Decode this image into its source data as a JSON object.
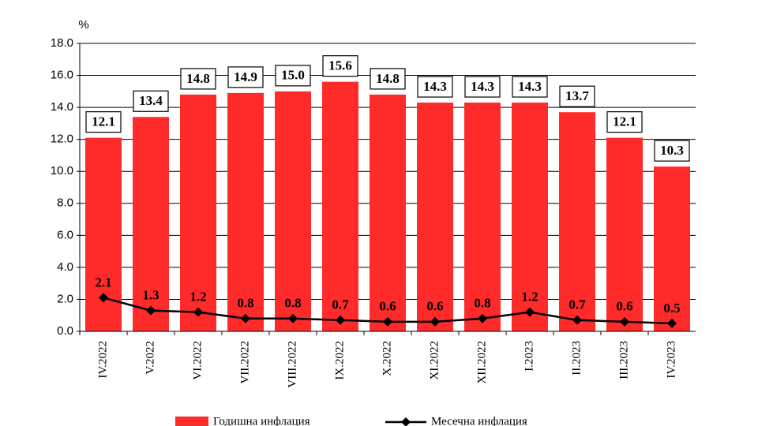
{
  "chart_data": {
    "type": "bar",
    "ylabel": "%",
    "categories": [
      "IV.2022",
      "V.2022",
      "VI.2022",
      "VII.2022",
      "VIII.2022",
      "IX.2022",
      "X.2022",
      "XI.2022",
      "XII.2022",
      "I.2023",
      "II.2023",
      "III.2023",
      "IV.2023"
    ],
    "series": [
      {
        "name": "Годишна инфлация",
        "type": "bar",
        "color": "#ff2a2a",
        "values": [
          12.1,
          13.4,
          14.8,
          14.9,
          15,
          15.6,
          14.8,
          14.3,
          14.3,
          14.3,
          13.7,
          12.1,
          10.3
        ],
        "value_labels": [
          "12.1",
          "13.4",
          "14.8",
          "14.9",
          "15.0",
          "15.6",
          "14.8",
          "14.3",
          "14.3",
          "14.3",
          "13.7",
          "12.1",
          "10.3"
        ]
      },
      {
        "name": "Месечна инфлация",
        "type": "line",
        "color": "#000000",
        "values": [
          2.1,
          1.3,
          1.2,
          0.8,
          0.8,
          0.7,
          0.6,
          0.6,
          0.8,
          1.2,
          0.7,
          0.6,
          0.5
        ]
      }
    ],
    "ylim": [
      0,
      18
    ],
    "yticks": [
      {
        "value": 0,
        "label": "0.0"
      },
      {
        "value": 2,
        "label": "2.0"
      },
      {
        "value": 4,
        "label": "4.0"
      },
      {
        "value": 6,
        "label": "6.0"
      },
      {
        "value": 8,
        "label": "8.0"
      },
      {
        "value": 10,
        "label": "10.0"
      },
      {
        "value": 12,
        "label": "12.0"
      },
      {
        "value": 14,
        "label": "14.0"
      },
      {
        "value": 16,
        "label": "16.0"
      },
      {
        "value": 18,
        "label": "18.0"
      }
    ],
    "grid": true
  }
}
